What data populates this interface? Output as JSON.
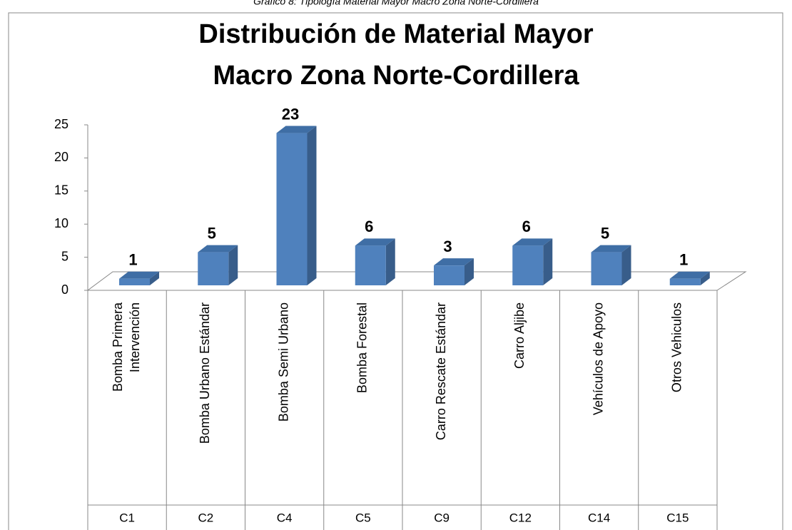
{
  "chart_data": {
    "type": "bar3d",
    "caption": "Gráfico 8: Tipología Material Mayor Macro Zona Norte-Cordillera",
    "title": [
      "Distribución de Material Mayor",
      "Macro Zona Norte-Cordillera"
    ],
    "categories": [
      [
        "Bomba Primera",
        "Intervención"
      ],
      [
        "Bomba Urbano Estándar"
      ],
      [
        "Bomba Semi Urbano"
      ],
      [
        "Bomba Forestal"
      ],
      [
        "Carro Rescate Estándar"
      ],
      [
        "Carro Aljibe"
      ],
      [
        "Vehículos de Apoyo"
      ],
      [
        "Otros Vehiculos"
      ]
    ],
    "codes": [
      "C1",
      "C2",
      "C4",
      "C5",
      "C9",
      "C12",
      "C14",
      "C15"
    ],
    "values": [
      1,
      5,
      23,
      6,
      3,
      6,
      5,
      1
    ],
    "color": "#4f81bd",
    "ylim": [
      0,
      25
    ],
    "yticks": [
      0,
      5,
      10,
      15,
      20,
      25
    ],
    "grid": false
  }
}
